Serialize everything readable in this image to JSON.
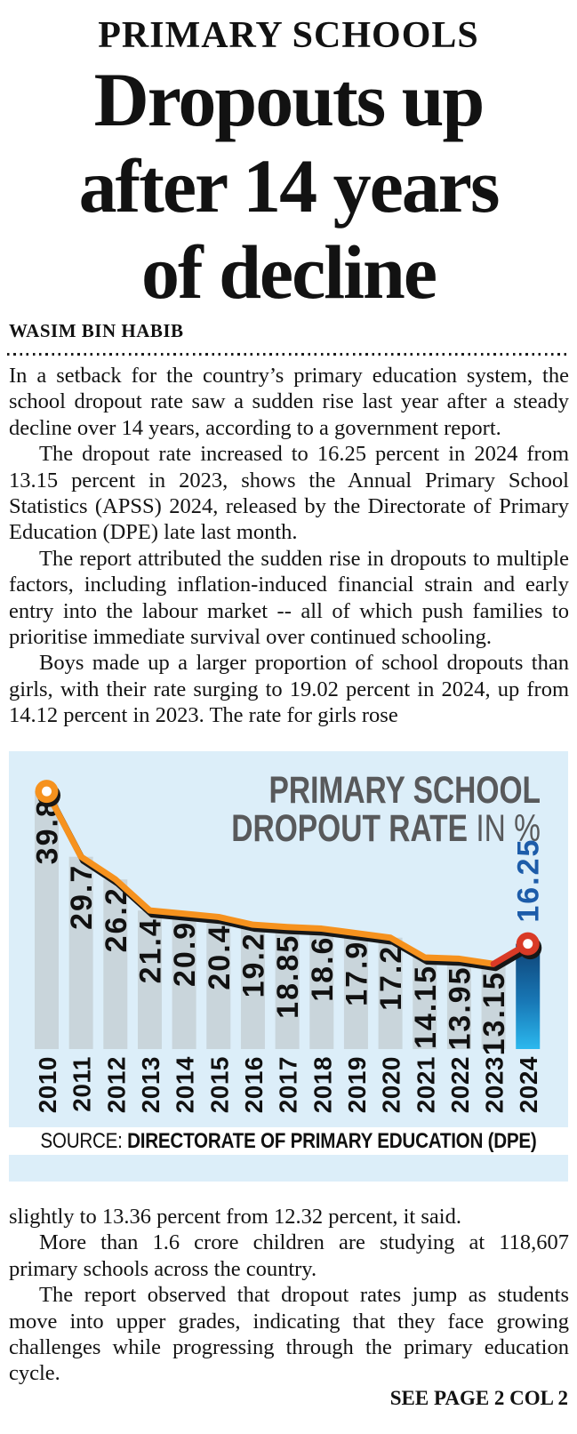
{
  "kicker": "PRIMARY SCHOOLS",
  "headline_lines": [
    "Dropouts up",
    "after 14 years",
    "of decline"
  ],
  "byline": "WASIM BIN HABIB",
  "paragraphs_top": [
    "In a setback for the country’s primary education system, the school dropout rate saw a sudden rise last year after a steady decline over 14 years, according to a government report.",
    "The dropout rate increased to 16.25 percent in 2024 from 13.15 percent in 2023, shows the Annual Primary School Statistics (APSS) 2024, released by the Directorate of Primary Education (DPE) late last month.",
    "The report attributed the sudden rise in dropouts to multiple factors, including inflation-induced financial strain and early entry into the labour market -- all of which push families to prioritise immediate survival over continued schooling.",
    "Boys made up a larger proportion of school dropouts than girls, with their rate surging to 19.02 percent in 2024, up from 14.12 percent in 2023. The rate for girls rose"
  ],
  "paragraphs_bottom": [
    "slightly to 13.36 percent from 12.32 percent, it said.",
    "More than 1.6 crore children are studying at 118,607 primary schools across the country.",
    "The report observed that dropout rates jump as students move into upper grades, indicating that they face growing challenges while progressing through the primary education cycle."
  ],
  "see_more": "SEE PAGE 2 COL 2",
  "chart_data": {
    "type": "bar",
    "line_overlay": true,
    "title": "PRIMARY SCHOOL DROPOUT RATE IN %",
    "title_line1": "PRIMARY SCHOOL",
    "title_line2_bold": "DROPOUT RATE",
    "title_line2_light": " IN %",
    "categories": [
      "2010",
      "2011",
      "2012",
      "2013",
      "2014",
      "2015",
      "2016",
      "2017",
      "2018",
      "2019",
      "2020",
      "2021",
      "2022",
      "2023",
      "2024"
    ],
    "values": [
      39.8,
      29.7,
      26.2,
      21.4,
      20.9,
      20.4,
      19.2,
      18.85,
      18.6,
      17.9,
      17.2,
      14.15,
      13.95,
      13.15,
      16.25
    ],
    "highlight_index": 14,
    "ylim": [
      0,
      46
    ],
    "xlabel": "",
    "ylabel": "dropout rate in %",
    "grid": false,
    "legend": "none",
    "source_label": "SOURCE:",
    "source": "DIRECTORATE OF PRIMARY EDUCATION (DPE)",
    "colors": {
      "background": "#dceef9",
      "bar": "#c9d5db",
      "bar_2024_top": "#0e4174",
      "bar_2024_mid": "#1878b6",
      "bar_2024_bottom": "#2bb8ee",
      "line": "#f6921e",
      "line_last_segment": "#d93a26",
      "line_shadow": "#171717",
      "marker_first": "#f6921e",
      "marker_last": "#d93a26",
      "marker_center": "#ffffff",
      "highlight_label": "#1d5ca9",
      "value_label": "#111111",
      "year_label": "#111111",
      "title": "#58595b"
    }
  }
}
